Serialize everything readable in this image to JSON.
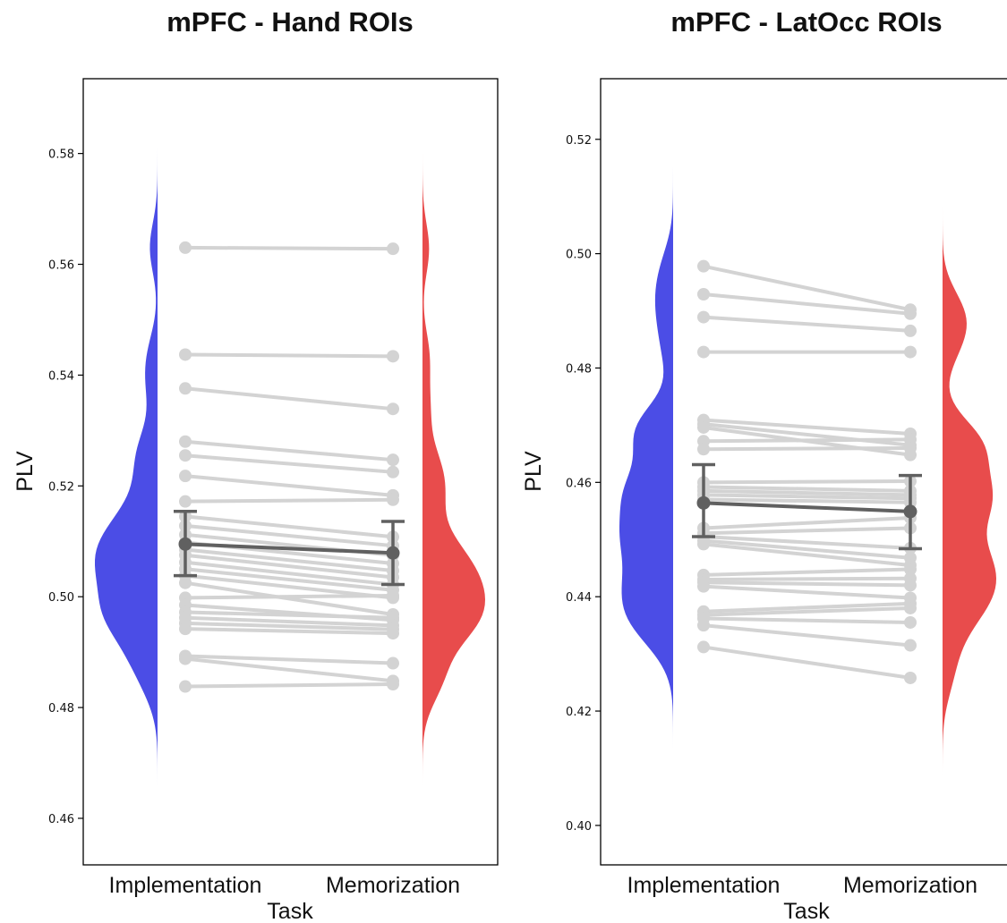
{
  "chart_data": [
    {
      "type": "raincloud-paired",
      "title": "mPFC - Hand ROIs",
      "xlabel": "Task",
      "ylabel": "PLV",
      "categories": [
        "Implementation",
        "Memorization"
      ],
      "ylim": [
        0.4516,
        0.5935
      ],
      "yticks": [
        "0.46",
        "0.48",
        "0.50",
        "0.52",
        "0.54",
        "0.56",
        "0.58"
      ],
      "ytick_values": [
        0.46,
        0.48,
        0.5,
        0.52,
        0.54,
        0.56,
        0.58
      ],
      "colors": {
        "Implementation": "#4b4de6",
        "Memorization": "#e84c4c",
        "pairs": "#d3d3d3",
        "summary": "#606060"
      },
      "pairs": [
        [
          0.563,
          0.5628
        ],
        [
          0.5437,
          0.5434
        ],
        [
          0.5376,
          0.5339
        ],
        [
          0.528,
          0.5247
        ],
        [
          0.5255,
          0.5225
        ],
        [
          0.5218,
          0.5183
        ],
        [
          0.5172,
          0.5175
        ],
        [
          0.5145,
          0.5108
        ],
        [
          0.5128,
          0.5092
        ],
        [
          0.5112,
          0.5075
        ],
        [
          0.5098,
          0.506
        ],
        [
          0.5085,
          0.5047
        ],
        [
          0.5075,
          0.5035
        ],
        [
          0.5062,
          0.5022
        ],
        [
          0.505,
          0.5012
        ],
        [
          0.5038,
          0.4998
        ],
        [
          0.5025,
          0.4968
        ],
        [
          0.4998,
          0.5002
        ],
        [
          0.4985,
          0.4958
        ],
        [
          0.4972,
          0.4962
        ],
        [
          0.4962,
          0.4948
        ],
        [
          0.4952,
          0.4941
        ],
        [
          0.4942,
          0.4934
        ],
        [
          0.4893,
          0.488
        ],
        [
          0.4888,
          0.4848
        ],
        [
          0.4838,
          0.4842
        ]
      ],
      "summary": {
        "Implementation": {
          "mean": 0.5095,
          "ci": [
            0.5038,
            0.5154
          ]
        },
        "Memorization": {
          "mean": 0.5079,
          "ci": [
            0.5022,
            0.5136
          ]
        }
      },
      "density_range": {
        "Implementation": [
          0.466,
          0.582
        ],
        "Memorization": [
          0.465,
          0.58
        ]
      }
    },
    {
      "type": "raincloud-paired",
      "title": "mPFC - LatOcc ROIs",
      "xlabel": "Task",
      "ylabel": "PLV",
      "categories": [
        "Implementation",
        "Memorization"
      ],
      "ylim": [
        0.3931,
        0.5306
      ],
      "yticks": [
        "0.40",
        "0.42",
        "0.44",
        "0.46",
        "0.48",
        "0.50",
        "0.52"
      ],
      "ytick_values": [
        0.4,
        0.42,
        0.44,
        0.46,
        0.48,
        0.5,
        0.52
      ],
      "colors": {
        "Implementation": "#4b4de6",
        "Memorization": "#e84c4c",
        "pairs": "#d3d3d3",
        "summary": "#606060"
      },
      "pairs": [
        [
          0.4978,
          0.4902
        ],
        [
          0.4929,
          0.4895
        ],
        [
          0.4889,
          0.4865
        ],
        [
          0.4828,
          0.4828
        ],
        [
          0.4709,
          0.4685
        ],
        [
          0.4702,
          0.4665
        ],
        [
          0.4696,
          0.4648
        ],
        [
          0.4672,
          0.4675
        ],
        [
          0.4658,
          0.466
        ],
        [
          0.46,
          0.4602
        ],
        [
          0.4592,
          0.4585
        ],
        [
          0.4585,
          0.4578
        ],
        [
          0.4578,
          0.4572
        ],
        [
          0.457,
          0.4565
        ],
        [
          0.452,
          0.4538
        ],
        [
          0.4511,
          0.452
        ],
        [
          0.4505,
          0.4485
        ],
        [
          0.4498,
          0.4468
        ],
        [
          0.4492,
          0.4455
        ],
        [
          0.4438,
          0.4448
        ],
        [
          0.443,
          0.4432
        ],
        [
          0.4425,
          0.442
        ],
        [
          0.4418,
          0.4398
        ],
        [
          0.4374,
          0.4388
        ],
        [
          0.4368,
          0.438
        ],
        [
          0.4362,
          0.4355
        ],
        [
          0.435,
          0.4315
        ],
        [
          0.4312,
          0.4258
        ]
      ],
      "summary": {
        "Implementation": {
          "mean": 0.4564,
          "ci": [
            0.4505,
            0.4631
          ]
        },
        "Memorization": {
          "mean": 0.4549,
          "ci": [
            0.4484,
            0.4612
          ]
        }
      },
      "density_range": {
        "Implementation": [
          0.41,
          0.518
        ],
        "Memorization": [
          0.408,
          0.511
        ]
      }
    }
  ]
}
